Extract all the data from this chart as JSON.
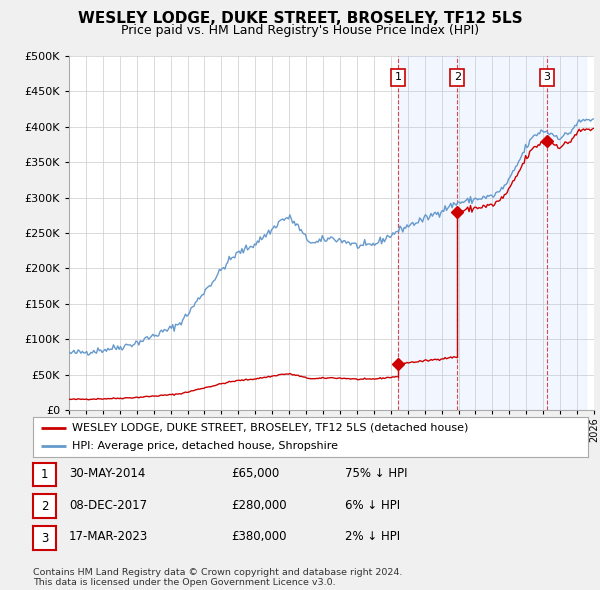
{
  "title": "WESLEY LODGE, DUKE STREET, BROSELEY, TF12 5LS",
  "subtitle": "Price paid vs. HM Land Registry's House Price Index (HPI)",
  "title_fontsize": 11,
  "subtitle_fontsize": 9,
  "background_color": "#f0f0f0",
  "plot_background_color": "#ffffff",
  "ylim": [
    0,
    500000
  ],
  "yticks": [
    0,
    50000,
    100000,
    150000,
    200000,
    250000,
    300000,
    350000,
    400000,
    450000,
    500000
  ],
  "hpi_color": "#6699cc",
  "sale_color": "#cc0000",
  "sale_points": [
    {
      "date": 2014.42,
      "price": 65000,
      "label": "1"
    },
    {
      "date": 2017.93,
      "price": 280000,
      "label": "2"
    },
    {
      "date": 2023.21,
      "price": 380000,
      "label": "3"
    }
  ],
  "vertical_lines": [
    2014.42,
    2017.93,
    2023.21
  ],
  "shade_start": 2014.42,
  "shade_end": 2025.5,
  "legend_entries": [
    "WESLEY LODGE, DUKE STREET, BROSELEY, TF12 5LS (detached house)",
    "HPI: Average price, detached house, Shropshire"
  ],
  "table_rows": [
    {
      "num": "1",
      "date": "30-MAY-2014",
      "price": "£65,000",
      "hpi": "75% ↓ HPI"
    },
    {
      "num": "2",
      "date": "08-DEC-2017",
      "price": "£280,000",
      "hpi": "6% ↓ HPI"
    },
    {
      "num": "3",
      "date": "17-MAR-2023",
      "price": "£380,000",
      "hpi": "2% ↓ HPI"
    }
  ],
  "footer": "Contains HM Land Registry data © Crown copyright and database right 2024.\nThis data is licensed under the Open Government Licence v3.0.",
  "xmin": 1995,
  "xmax": 2026
}
